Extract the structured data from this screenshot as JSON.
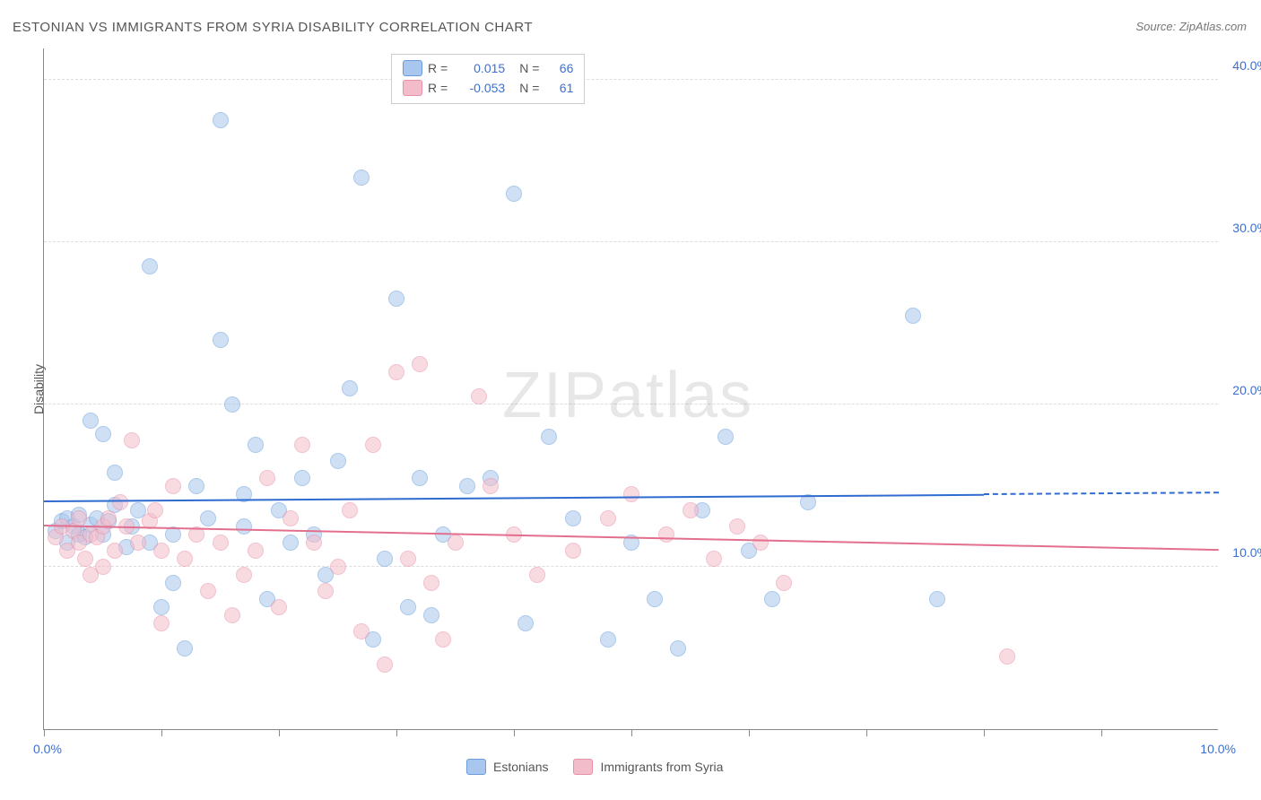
{
  "title": "ESTONIAN VS IMMIGRANTS FROM SYRIA DISABILITY CORRELATION CHART",
  "source": "Source: ZipAtlas.com",
  "watermark": "ZIPatlas",
  "y_axis_title": "Disability",
  "chart": {
    "type": "scatter",
    "xlim": [
      0,
      10
    ],
    "ylim": [
      0,
      42
    ],
    "x_tick_positions": [
      0,
      1,
      2,
      3,
      4,
      5,
      6,
      7,
      8,
      9
    ],
    "x_tick_labels": {
      "0": "0.0%",
      "10": "10.0%"
    },
    "y_grid": [
      10,
      20,
      30,
      40
    ],
    "y_tick_labels": {
      "10": "10.0%",
      "20": "20.0%",
      "30": "30.0%",
      "40": "40.0%"
    },
    "background_color": "#ffffff",
    "grid_color": "#dddddd",
    "marker_size": 18,
    "series": [
      {
        "name": "Estonians",
        "fill": "#a9c7ee",
        "stroke": "#6a9edb",
        "fill_opacity": 0.55,
        "r_value": "0.015",
        "n_value": "66",
        "trend": {
          "y_start": 14.0,
          "y_end": 14.5,
          "color": "#2f6bd0",
          "dashed_after_x": 8.0
        },
        "points": [
          [
            0.1,
            12.2
          ],
          [
            0.15,
            12.8
          ],
          [
            0.2,
            13.0
          ],
          [
            0.2,
            11.5
          ],
          [
            0.25,
            12.5
          ],
          [
            0.3,
            12.0
          ],
          [
            0.3,
            13.2
          ],
          [
            0.35,
            11.8
          ],
          [
            0.4,
            12.6
          ],
          [
            0.4,
            19.0
          ],
          [
            0.45,
            13.0
          ],
          [
            0.5,
            18.2
          ],
          [
            0.5,
            12.0
          ],
          [
            0.55,
            12.8
          ],
          [
            0.6,
            15.8
          ],
          [
            0.7,
            11.2
          ],
          [
            0.75,
            12.5
          ],
          [
            0.8,
            13.5
          ],
          [
            0.9,
            28.5
          ],
          [
            1.0,
            7.5
          ],
          [
            1.1,
            12.0
          ],
          [
            1.2,
            5.0
          ],
          [
            1.3,
            15.0
          ],
          [
            1.4,
            13.0
          ],
          [
            1.5,
            37.5
          ],
          [
            1.5,
            24.0
          ],
          [
            1.6,
            20.0
          ],
          [
            1.7,
            12.5
          ],
          [
            1.7,
            14.5
          ],
          [
            1.8,
            17.5
          ],
          [
            1.9,
            8.0
          ],
          [
            2.0,
            13.5
          ],
          [
            2.1,
            11.5
          ],
          [
            2.2,
            15.5
          ],
          [
            2.3,
            12.0
          ],
          [
            2.5,
            16.5
          ],
          [
            2.6,
            21.0
          ],
          [
            2.7,
            34.0
          ],
          [
            2.8,
            5.5
          ],
          [
            2.9,
            10.5
          ],
          [
            3.0,
            26.5
          ],
          [
            3.1,
            7.5
          ],
          [
            3.2,
            15.5
          ],
          [
            3.4,
            12.0
          ],
          [
            3.6,
            15.0
          ],
          [
            3.8,
            15.5
          ],
          [
            4.0,
            33.0
          ],
          [
            4.1,
            6.5
          ],
          [
            4.3,
            18.0
          ],
          [
            4.5,
            13.0
          ],
          [
            4.8,
            5.5
          ],
          [
            5.0,
            11.5
          ],
          [
            5.2,
            8.0
          ],
          [
            5.4,
            5.0
          ],
          [
            5.6,
            13.5
          ],
          [
            5.8,
            18.0
          ],
          [
            6.0,
            11.0
          ],
          [
            6.2,
            8.0
          ],
          [
            6.5,
            14.0
          ],
          [
            7.4,
            25.5
          ],
          [
            7.6,
            8.0
          ],
          [
            0.6,
            13.8
          ],
          [
            0.9,
            11.5
          ],
          [
            1.1,
            9.0
          ],
          [
            2.4,
            9.5
          ],
          [
            3.3,
            7.0
          ]
        ]
      },
      {
        "name": "Immigrants from Syria",
        "fill": "#f3bcca",
        "stroke": "#e98fa8",
        "fill_opacity": 0.55,
        "r_value": "-0.053",
        "n_value": "61",
        "trend": {
          "y_start": 12.5,
          "y_end": 11.0,
          "color": "#e36f8f",
          "dashed_after_x": 10.0
        },
        "points": [
          [
            0.1,
            11.8
          ],
          [
            0.15,
            12.5
          ],
          [
            0.2,
            11.0
          ],
          [
            0.25,
            12.2
          ],
          [
            0.3,
            11.5
          ],
          [
            0.3,
            13.0
          ],
          [
            0.35,
            10.5
          ],
          [
            0.4,
            12.0
          ],
          [
            0.4,
            9.5
          ],
          [
            0.45,
            11.8
          ],
          [
            0.5,
            12.5
          ],
          [
            0.5,
            10.0
          ],
          [
            0.55,
            13.0
          ],
          [
            0.6,
            11.0
          ],
          [
            0.7,
            12.5
          ],
          [
            0.75,
            17.8
          ],
          [
            0.8,
            11.5
          ],
          [
            0.9,
            12.8
          ],
          [
            0.95,
            13.5
          ],
          [
            1.0,
            11.0
          ],
          [
            1.1,
            15.0
          ],
          [
            1.2,
            10.5
          ],
          [
            1.3,
            12.0
          ],
          [
            1.4,
            8.5
          ],
          [
            1.5,
            11.5
          ],
          [
            1.6,
            7.0
          ],
          [
            1.7,
            9.5
          ],
          [
            1.8,
            11.0
          ],
          [
            1.9,
            15.5
          ],
          [
            2.0,
            7.5
          ],
          [
            2.1,
            13.0
          ],
          [
            2.2,
            17.5
          ],
          [
            2.3,
            11.5
          ],
          [
            2.4,
            8.5
          ],
          [
            2.5,
            10.0
          ],
          [
            2.6,
            13.5
          ],
          [
            2.8,
            17.5
          ],
          [
            2.9,
            4.0
          ],
          [
            3.0,
            22.0
          ],
          [
            3.1,
            10.5
          ],
          [
            3.2,
            22.5
          ],
          [
            3.3,
            9.0
          ],
          [
            3.5,
            11.5
          ],
          [
            3.7,
            20.5
          ],
          [
            3.8,
            15.0
          ],
          [
            4.0,
            12.0
          ],
          [
            4.2,
            9.5
          ],
          [
            4.5,
            11.0
          ],
          [
            4.8,
            13.0
          ],
          [
            5.0,
            14.5
          ],
          [
            5.3,
            12.0
          ],
          [
            5.5,
            13.5
          ],
          [
            5.7,
            10.5
          ],
          [
            5.9,
            12.5
          ],
          [
            6.1,
            11.5
          ],
          [
            6.3,
            9.0
          ],
          [
            8.2,
            4.5
          ],
          [
            1.0,
            6.5
          ],
          [
            2.7,
            6.0
          ],
          [
            3.4,
            5.5
          ],
          [
            0.65,
            14.0
          ]
        ]
      }
    ]
  },
  "legend_top": {
    "r_label": "R =",
    "n_label": "N ="
  },
  "legend_bottom": {
    "items": [
      "Estonians",
      "Immigrants from Syria"
    ]
  }
}
